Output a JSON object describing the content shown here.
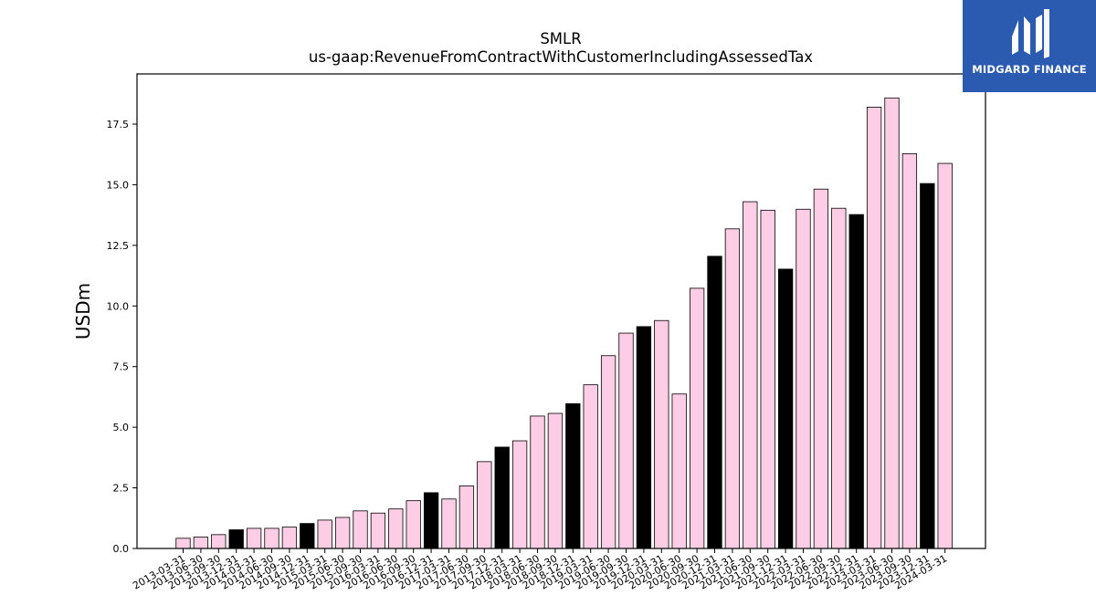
{
  "logo": {
    "text": "MIDGARD FINANCE",
    "background": "#2a5bb0"
  },
  "chart_data": {
    "type": "bar",
    "title": "SMLR",
    "subtitle": "us-gaap:RevenueFromContractWithCustomerIncludingAssessedTax",
    "ylabel": "USDm",
    "xlabel": "",
    "ylim": [
      0,
      19.5
    ],
    "yticks": [
      0.0,
      2.5,
      5.0,
      7.5,
      10.0,
      12.5,
      15.0,
      17.5
    ],
    "ytick_labels": [
      "0.0",
      "2.5",
      "5.0",
      "7.5",
      "10.0",
      "12.5",
      "15.0",
      "17.5"
    ],
    "grid": false,
    "colors": {
      "quarter": "#fccde5",
      "fiscal_year_end": "#000000",
      "edge": "#000000"
    },
    "categories": [
      "2013-03-31",
      "2013-06-30",
      "2013-09-30",
      "2013-12-31",
      "2014-03-31",
      "2014-06-30",
      "2014-09-30",
      "2014-12-31",
      "2015-03-31",
      "2015-06-30",
      "2015-09-30",
      "2016-03-31",
      "2016-06-30",
      "2016-09-30",
      "2016-12-31",
      "2017-03-31",
      "2017-06-30",
      "2017-09-30",
      "2017-12-31",
      "2018-03-31",
      "2018-06-30",
      "2018-09-30",
      "2018-12-31",
      "2019-03-31",
      "2019-06-30",
      "2019-09-30",
      "2019-12-31",
      "2020-03-31",
      "2020-06-30",
      "2020-09-30",
      "2020-12-31",
      "2021-03-31",
      "2021-06-30",
      "2021-09-30",
      "2021-12-31",
      "2022-03-31",
      "2022-06-30",
      "2022-09-30",
      "2022-12-31",
      "2023-03-31",
      "2023-06-30",
      "2023-09-30",
      "2023-12-31",
      "2024-03-31"
    ],
    "values": [
      0.42,
      0.47,
      0.57,
      0.77,
      0.83,
      0.83,
      0.88,
      1.03,
      1.17,
      1.28,
      1.55,
      1.46,
      1.63,
      1.97,
      2.3,
      2.04,
      2.58,
      3.58,
      4.18,
      4.44,
      5.46,
      5.57,
      5.97,
      6.75,
      7.95,
      8.88,
      9.15,
      9.4,
      6.37,
      10.73,
      12.05,
      13.18,
      14.3,
      13.95,
      11.52,
      13.99,
      14.82,
      14.03,
      13.77,
      18.2,
      18.58,
      16.28,
      15.05,
      15.88
    ],
    "highlight": [
      false,
      false,
      false,
      true,
      false,
      false,
      false,
      true,
      false,
      false,
      false,
      false,
      false,
      false,
      true,
      false,
      false,
      false,
      true,
      false,
      false,
      false,
      true,
      false,
      false,
      false,
      true,
      false,
      false,
      false,
      true,
      false,
      false,
      false,
      true,
      false,
      false,
      false,
      true,
      false,
      false,
      false,
      true,
      false
    ]
  }
}
